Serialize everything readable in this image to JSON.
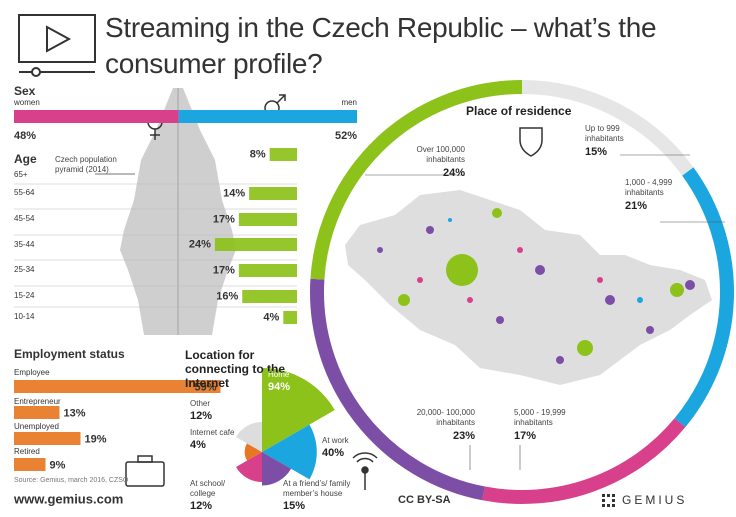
{
  "title": "Streaming in the Czech Republic – what’s the consumer profile?",
  "website": "www.gemius.com",
  "license": "CC BY-SA",
  "brand": "GEMIUS",
  "chart_data": [
    {
      "type": "stacked",
      "title": "Sex",
      "categories": [
        "women",
        "men"
      ],
      "values": [
        48,
        52
      ],
      "value_labels": [
        "48%",
        "52%"
      ],
      "colors": [
        "#d8408c",
        "#1ba6e0"
      ]
    },
    {
      "type": "bar",
      "title": "Age",
      "annotation": "Czech population pyramid (2014)",
      "categories": [
        "65+",
        "55-64",
        "45-54",
        "35-44",
        "25-34",
        "15-24",
        "10-14"
      ],
      "values": [
        8,
        14,
        17,
        24,
        17,
        16,
        4
      ],
      "value_labels": [
        "8%",
        "14%",
        "17%",
        "24%",
        "17%",
        "16%",
        "4%"
      ],
      "color": "#8cc21a"
    },
    {
      "type": "bar",
      "title": "Employment status",
      "source": "Source: Gemius, march 2016, CZSO",
      "categories": [
        "Employee",
        "Entrepreneur",
        "Unemployed",
        "Retired"
      ],
      "values": [
        59,
        13,
        19,
        9
      ],
      "value_labels": [
        "59%",
        "13%",
        "19%",
        "9%"
      ],
      "color": "#e87722"
    },
    {
      "type": "polar",
      "title": "Location for connecting to the Internet",
      "categories": [
        "Home",
        "At work",
        "At a friend’s/ family member’s house",
        "At school/ college",
        "Internet cafe",
        "Other"
      ],
      "values": [
        94,
        40,
        15,
        12,
        4,
        12
      ],
      "value_labels": [
        "94%",
        "40%",
        "15%",
        "12%",
        "4%",
        "12%"
      ],
      "colors": [
        "#8cc21a",
        "#1ba6e0",
        "#7d4ea6",
        "#d8408c",
        "#e87722",
        "#dddddd"
      ]
    },
    {
      "type": "donut",
      "title": "Place of residence",
      "categories": [
        "Up to 999 inhabitants",
        "1,000 - 4,999 inhabitants",
        "5,000 - 19,999 inhabitants",
        "20,000- 100,000 inhabitants",
        "Over 100,000 inhabitants"
      ],
      "values": [
        15,
        21,
        17,
        23,
        24
      ],
      "value_labels": [
        "15%",
        "21%",
        "17%",
        "23%",
        "24%"
      ],
      "colors": [
        "#e6e6e6",
        "#1ba6e0",
        "#d8408c",
        "#7d4ea6",
        "#8cc21a"
      ]
    }
  ]
}
